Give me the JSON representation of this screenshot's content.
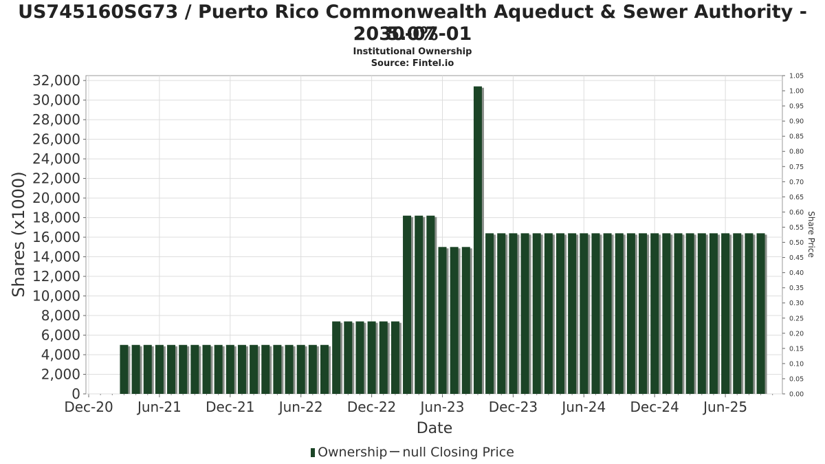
{
  "header": {
    "title_line1": "US745160SG73 / Puerto Rico Commonwealth Aqueduct & Sewer Authority - 5.0%",
    "title_line2": "2030-07-01",
    "subtitle": "Institutional Ownership",
    "source": "Source: Fintel.io"
  },
  "legend": {
    "ownership": "Ownership",
    "price": "null Closing Price"
  },
  "colors": {
    "bar": "#1b4426",
    "bar_shadow": "#8a8f8a",
    "grid": "#dddddd"
  },
  "chart_data": {
    "type": "bar",
    "xlabel": "Date",
    "ylabel": "Shares (x1000)",
    "y2label": "Share Price",
    "ylim": [
      0,
      32500
    ],
    "y2lim": [
      0,
      1.05
    ],
    "yticks": [
      "0",
      "2,000",
      "4,000",
      "6,000",
      "8,000",
      "10,000",
      "12,000",
      "14,000",
      "16,000",
      "18,000",
      "20,000",
      "22,000",
      "24,000",
      "26,000",
      "28,000",
      "30,000",
      "32,000"
    ],
    "y2ticks": [
      "0.00",
      "0.05",
      "0.10",
      "0.15",
      "0.20",
      "0.25",
      "0.30",
      "0.35",
      "0.40",
      "0.45",
      "0.50",
      "0.55",
      "0.60",
      "0.65",
      "0.70",
      "0.75",
      "0.80",
      "0.85",
      "0.90",
      "0.95",
      "1.00",
      "1.05"
    ],
    "xticks": [
      "Dec-20",
      "Jun-21",
      "Dec-21",
      "Jun-22",
      "Dec-22",
      "Jun-23",
      "Dec-23",
      "Jun-24",
      "Dec-24",
      "Jun-25"
    ],
    "grid": true,
    "legend_position": "bottom",
    "series": [
      {
        "name": "Ownership",
        "values": [
          5000,
          5000,
          5000,
          5000,
          5000,
          5000,
          5000,
          5000,
          5000,
          5000,
          5000,
          5000,
          5000,
          5000,
          5000,
          5000,
          5000,
          5000,
          7400,
          7400,
          7400,
          7400,
          7400,
          7400,
          18200,
          18200,
          18200,
          15000,
          15000,
          15000,
          31400,
          16400,
          16400,
          16400,
          16400,
          16400,
          16400,
          16400,
          16400,
          16400,
          16400,
          16400,
          16400,
          16400,
          16400,
          16400,
          16400,
          16400,
          16400,
          16400,
          16400,
          16400,
          16400,
          16400,
          16400
        ]
      }
    ]
  }
}
